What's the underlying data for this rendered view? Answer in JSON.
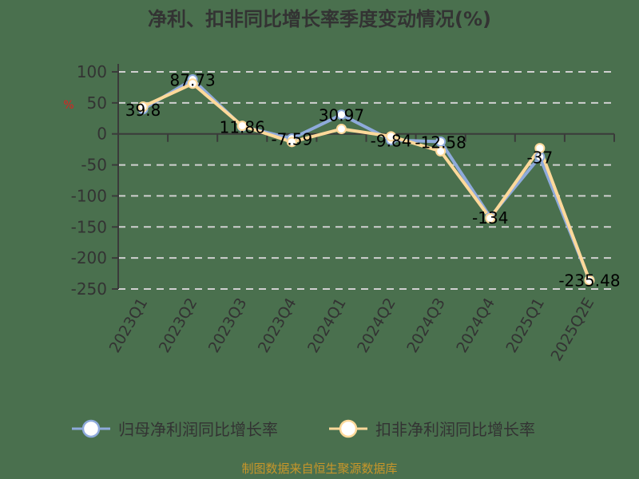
{
  "chart_data": {
    "type": "line",
    "title": "净利、扣非同比增长率季度变动情况(%)",
    "ylabel": "%",
    "xlabel": "",
    "ylim": [
      -250,
      100
    ],
    "yticks": [
      100,
      50,
      0,
      -50,
      -100,
      -150,
      -200,
      -250
    ],
    "grid": true,
    "legend_position": "bottom",
    "categories": [
      "2023Q1",
      "2023Q2",
      "2023Q3",
      "2023Q4",
      "2024Q1",
      "2024Q2",
      "2024Q3",
      "2024Q4",
      "2025Q1",
      "2025Q2E"
    ],
    "series": [
      {
        "name": "归母净利润同比增长率",
        "color": "#8eaadb",
        "values": [
          39.8,
          87.73,
          11.86,
          -7.59,
          30.97,
          -9.84,
          -12.58,
          -134,
          -37,
          -235.48
        ],
        "labels": [
          "39.8",
          "87.73",
          "11.86",
          "-7.59",
          "30.97",
          "-9.84",
          "-12.58",
          "-134",
          "-37",
          "-235.48"
        ]
      },
      {
        "name": "扣非净利润同比增长率",
        "color": "#ffd99a",
        "values": [
          44,
          81,
          13,
          -13,
          8,
          -4,
          -28,
          -136,
          -23,
          -236
        ]
      }
    ],
    "source": "制图数据来自恒生聚源数据库"
  }
}
